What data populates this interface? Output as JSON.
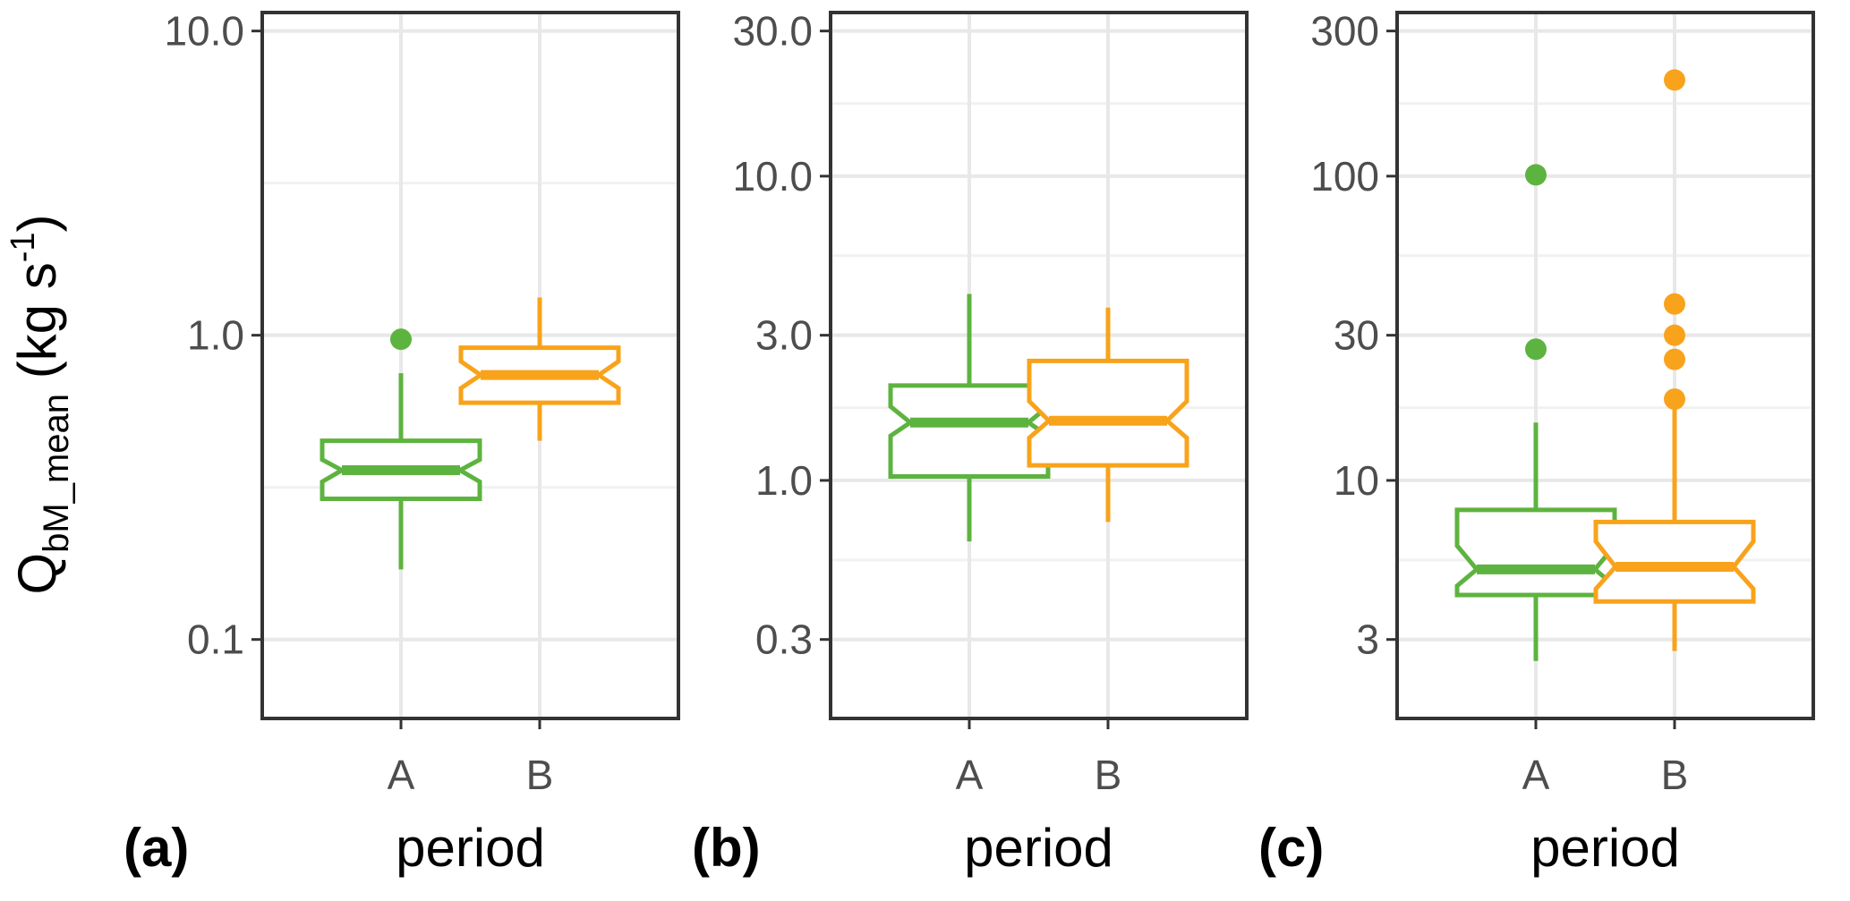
{
  "chart_data": {
    "type": "boxplot",
    "y_axis_label": {
      "main": "Q",
      "subscript": "bM_mean",
      "unit_before": "(kg s",
      "unit_exponent": "-1",
      "unit_after": ")"
    },
    "x_axis_label": "period",
    "scale": "log10",
    "colors": {
      "A": "#5DB33F",
      "B": "#F8A31B"
    },
    "panels": [
      {
        "id": "a",
        "label": "(a)",
        "xlabel": "period",
        "categories": [
          "A",
          "B"
        ],
        "ylim": [
          0.055,
          11.5
        ],
        "yticks": [
          0.1,
          1.0,
          10.0
        ],
        "ytick_labels": [
          "0.1",
          "1.0",
          "10.0"
        ],
        "boxes": [
          {
            "category": "A",
            "min": 0.17,
            "q1": 0.29,
            "median": 0.36,
            "q3": 0.45,
            "max": 0.75,
            "notch_low": 0.33,
            "notch_high": 0.39,
            "outliers": [
              0.97
            ]
          },
          {
            "category": "B",
            "min": 0.45,
            "q1": 0.6,
            "median": 0.74,
            "q3": 0.91,
            "max": 1.33,
            "notch_low": 0.67,
            "notch_high": 0.82,
            "outliers": []
          }
        ]
      },
      {
        "id": "b",
        "label": "(b)",
        "xlabel": "period",
        "categories": [
          "A",
          "B"
        ],
        "ylim": [
          0.165,
          34.5
        ],
        "yticks": [
          0.3,
          1.0,
          3.0,
          10.0,
          30.0
        ],
        "ytick_labels": [
          "0.3",
          "1.0",
          "3.0",
          "10.0",
          "30.0"
        ],
        "boxes": [
          {
            "category": "A",
            "min": 0.63,
            "q1": 1.03,
            "median": 1.55,
            "q3": 2.05,
            "max": 4.1,
            "notch_low": 1.4,
            "notch_high": 1.75,
            "outliers": []
          },
          {
            "category": "B",
            "min": 0.73,
            "q1": 1.12,
            "median": 1.57,
            "q3": 2.47,
            "max": 3.7,
            "notch_low": 1.38,
            "notch_high": 1.82,
            "outliers": []
          }
        ]
      },
      {
        "id": "c",
        "label": "(c)",
        "xlabel": "period",
        "categories": [
          "A",
          "B"
        ],
        "ylim": [
          1.65,
          345
        ],
        "yticks": [
          3,
          10,
          30,
          100,
          300
        ],
        "ytick_labels": [
          "3",
          "10",
          "30",
          "100",
          "300"
        ],
        "boxes": [
          {
            "category": "A",
            "min": 2.55,
            "q1": 4.2,
            "median": 5.1,
            "q3": 8.0,
            "max": 15.5,
            "notch_low": 4.5,
            "notch_high": 6.1,
            "outliers": [
              27,
              101
            ]
          },
          {
            "category": "B",
            "min": 2.75,
            "q1": 4.0,
            "median": 5.2,
            "q3": 7.3,
            "max": 18.5,
            "notch_low": 4.4,
            "notch_high": 6.3,
            "outliers": [
              18.5,
              25,
              30,
              38,
              207
            ]
          }
        ]
      }
    ]
  }
}
